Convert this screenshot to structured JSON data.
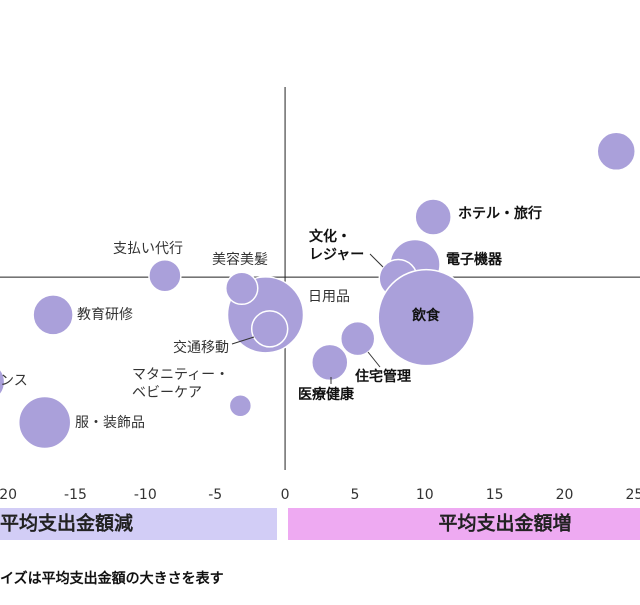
{
  "chart_data": {
    "type": "bubble",
    "x": [
      23.7,
      10.6,
      9.3,
      8.1,
      10.1,
      5.2,
      3.2,
      -1.4,
      -1.1,
      -3.1,
      -8.6,
      -16.6,
      -3.2,
      -17.2,
      -21.5
    ],
    "values": [
      9.0,
      4.3,
      0.9,
      -0.1,
      -2.9,
      -4.4,
      -6.1,
      -2.7,
      -3.7,
      -0.8,
      0.1,
      -2.7,
      -9.2,
      -10.4,
      -7.5
    ],
    "sizes": [
      19,
      18,
      25,
      19,
      48,
      17,
      18,
      38,
      18,
      16,
      16,
      20,
      11,
      26,
      20
    ],
    "labels": [
      null,
      [
        "ホテル・旅行"
      ],
      [
        "電子機器"
      ],
      [
        "文化・",
        "レジャー"
      ],
      [
        "飲食"
      ],
      [
        "住宅管理"
      ],
      [
        "医療健康"
      ],
      [
        "日用品"
      ],
      [
        "交通移動"
      ],
      [
        "美容美髪"
      ],
      [
        "支払い代行"
      ],
      [
        "教育研修"
      ],
      [
        "マタニティー・",
        "ベビーケア"
      ],
      [
        "服・装飾品"
      ],
      [
        "ンス"
      ]
    ],
    "color": "#aaa0da",
    "xlim": [
      -20.4,
      25.4
    ],
    "ylim": [
      -13.8,
      13.6
    ],
    "xticks": [
      -20,
      -15,
      -10,
      -5,
      0,
      5,
      10,
      15,
      20,
      25
    ],
    "annotations": [
      "平均支出金額減",
      "平均支出金額増"
    ],
    "note": "イズは平均支出金額の大きさを表す"
  }
}
